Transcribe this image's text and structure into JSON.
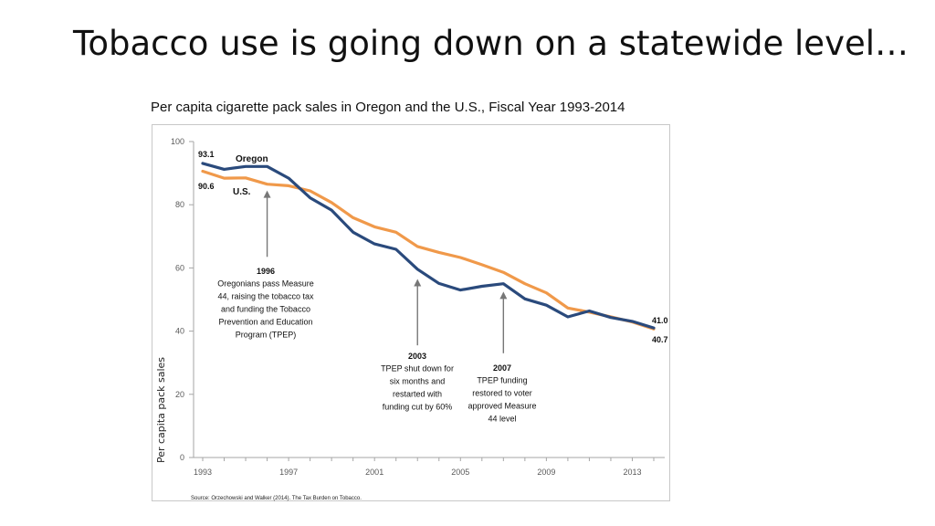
{
  "slide": {
    "title": "Tobacco use is going down on a statewide level…"
  },
  "chart_data": {
    "type": "line",
    "title": "Per capita cigarette pack sales in Oregon and the U.S., Fiscal Year 1993-2014",
    "xlabel": "",
    "ylabel": "Per capita pack sales",
    "xlim": [
      1993,
      2014
    ],
    "ylim": [
      0,
      100
    ],
    "x": [
      1993,
      1994,
      1995,
      1996,
      1997,
      1998,
      1999,
      2000,
      2001,
      2002,
      2003,
      2004,
      2005,
      2006,
      2007,
      2008,
      2009,
      2010,
      2011,
      2012,
      2013,
      2014
    ],
    "x_ticks": [
      1993,
      1997,
      2001,
      2005,
      2009,
      2013
    ],
    "y_ticks": [
      0,
      20,
      40,
      60,
      80,
      100
    ],
    "series": [
      {
        "name": "Oregon",
        "color": "#2a4a7c",
        "values": [
          93.1,
          91.2,
          92.1,
          92.1,
          88.4,
          82.2,
          78.3,
          71.3,
          67.6,
          65.9,
          59.6,
          55.1,
          53.0,
          54.2,
          55.0,
          50.2,
          48.2,
          44.5,
          46.4,
          44.3,
          43.1,
          41.0
        ],
        "start_label": "93.1",
        "end_label": "41.0"
      },
      {
        "name": "U.S.",
        "color": "#f0994a",
        "values": [
          90.6,
          88.4,
          88.5,
          86.5,
          86.0,
          84.4,
          80.7,
          75.9,
          73.0,
          71.3,
          66.8,
          64.9,
          63.3,
          61.0,
          58.6,
          55.0,
          52.1,
          47.3,
          46.0,
          44.5,
          42.9,
          40.7
        ],
        "start_label": "90.6",
        "end_label": "40.7"
      }
    ],
    "annotations": [
      {
        "year_label": "1996",
        "text": [
          "Oregonians pass Measure",
          "44, raising the tobacco tax",
          "and funding the Tobacco",
          "Prevention and Education",
          "Program (TPEP)"
        ],
        "arrow_x": 1996.0,
        "arrow_from_y": 63.5,
        "arrow_to_y": 84.5
      },
      {
        "year_label": "2003",
        "text": [
          "TPEP shut down for",
          "six months and",
          "restarted with",
          "funding cut by 60%"
        ],
        "arrow_x": 2003.0,
        "arrow_from_y": 35.5,
        "arrow_to_y": 56.5
      },
      {
        "year_label": "2007",
        "text": [
          "TPEP funding",
          "restored to voter",
          "approved Measure",
          "44 level"
        ],
        "arrow_x": 2007.0,
        "arrow_from_y": 33.0,
        "arrow_to_y": 52.5
      }
    ],
    "source": "Source: Orzechowski and Walker (2014). The Tax Burden on Tobacco."
  }
}
